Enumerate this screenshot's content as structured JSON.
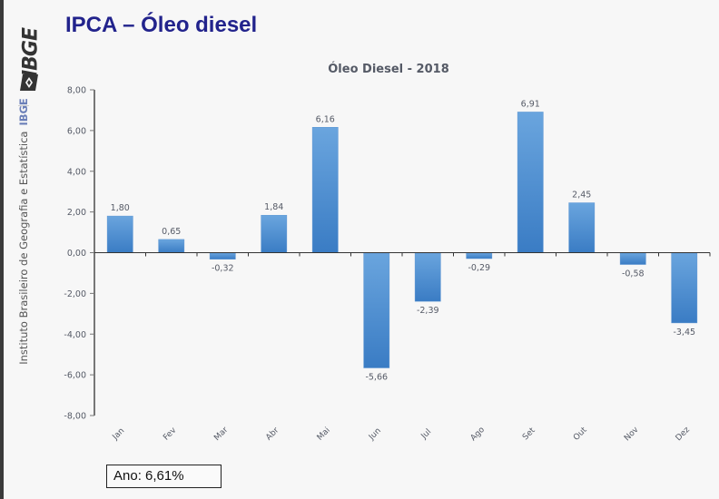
{
  "page": {
    "title": "IPCA – Óleo diesel",
    "sidebar": {
      "logo_text": "IBGE",
      "institute_text": "Instituto Brasileiro de Geografia e Estatística",
      "institute_abbrev": "IBGE"
    },
    "annual_box": "Ano: 6,61%"
  },
  "colors": {
    "title": "#22238c",
    "bar_top": "#6aa5de",
    "bar_bottom": "#3a7cc4",
    "axis": "#777777",
    "text": "#555a66"
  },
  "chart_data": {
    "type": "bar",
    "title": "Óleo Diesel - 2018",
    "xlabel": "",
    "ylabel": "",
    "categories": [
      "Jan",
      "Fev",
      "Mar",
      "Abr",
      "Mai",
      "Jun",
      "Jul",
      "Ago",
      "Set",
      "Out",
      "Nov",
      "Dez"
    ],
    "values": [
      1.8,
      0.65,
      -0.32,
      1.84,
      6.16,
      -5.66,
      -2.39,
      -0.29,
      6.91,
      2.45,
      -0.58,
      -3.45
    ],
    "value_labels": [
      "1,80",
      "0,65",
      "-0,32",
      "1,84",
      "6,16",
      "-5,66",
      "-2,39",
      "-0,29",
      "6,91",
      "2,45",
      "-0,58",
      "-3,45"
    ],
    "ylim": [
      -8,
      8
    ],
    "yticks": [
      8,
      6,
      4,
      2,
      0,
      -2,
      -4,
      -6,
      -8
    ],
    "ytick_labels": [
      "8,00",
      "6,00",
      "4,00",
      "2,00",
      "0,00",
      "-2,00",
      "-4,00",
      "-6,00",
      "-8,00"
    ],
    "grid": false,
    "legend": "none"
  }
}
